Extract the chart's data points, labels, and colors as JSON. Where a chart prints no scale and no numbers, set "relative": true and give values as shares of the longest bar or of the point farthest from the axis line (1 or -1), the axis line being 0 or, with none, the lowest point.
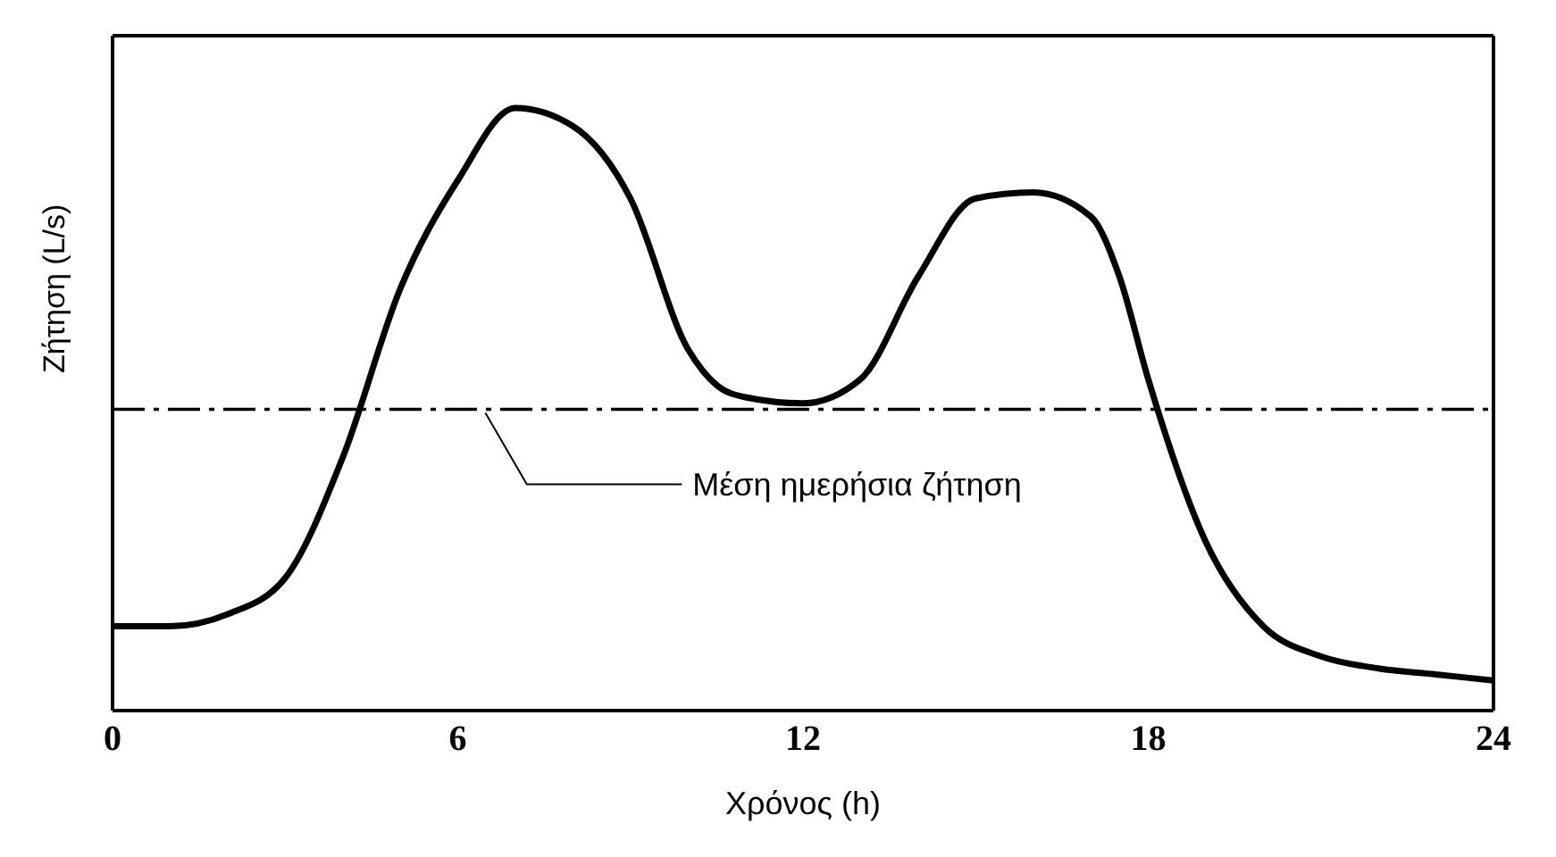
{
  "chart_data": {
    "type": "line",
    "xlabel": "Χρόνος (h)",
    "ylabel": "Ζήτηση (L/s)",
    "relative": true,
    "x": [
      0,
      1,
      2,
      3,
      4,
      5,
      6,
      7,
      8,
      9,
      10,
      10.5,
      11,
      12,
      13,
      14,
      15,
      16,
      17,
      17.5,
      18,
      19,
      20,
      21,
      22,
      23,
      24
    ],
    "series": [
      {
        "color": "#000000",
        "values": [
          0.14,
          0.14,
          0.16,
          0.22,
          0.42,
          0.7,
          0.88,
          1.0,
          0.97,
          0.85,
          0.6,
          0.54,
          0.52,
          0.51,
          0.55,
          0.72,
          0.85,
          0.86,
          0.82,
          0.72,
          0.55,
          0.28,
          0.14,
          0.09,
          0.07,
          0.06,
          0.05
        ]
      }
    ],
    "xlim": [
      0,
      24
    ],
    "xticks": [
      0,
      6,
      12,
      18,
      24
    ],
    "ref_lines": [
      {
        "axis": "y",
        "value": 0.5,
        "label": "Μέση ημερήσια ζήτηση",
        "color": "#000000",
        "line_style": "dashed"
      }
    ],
    "marker": "none",
    "line_style": "solid"
  }
}
